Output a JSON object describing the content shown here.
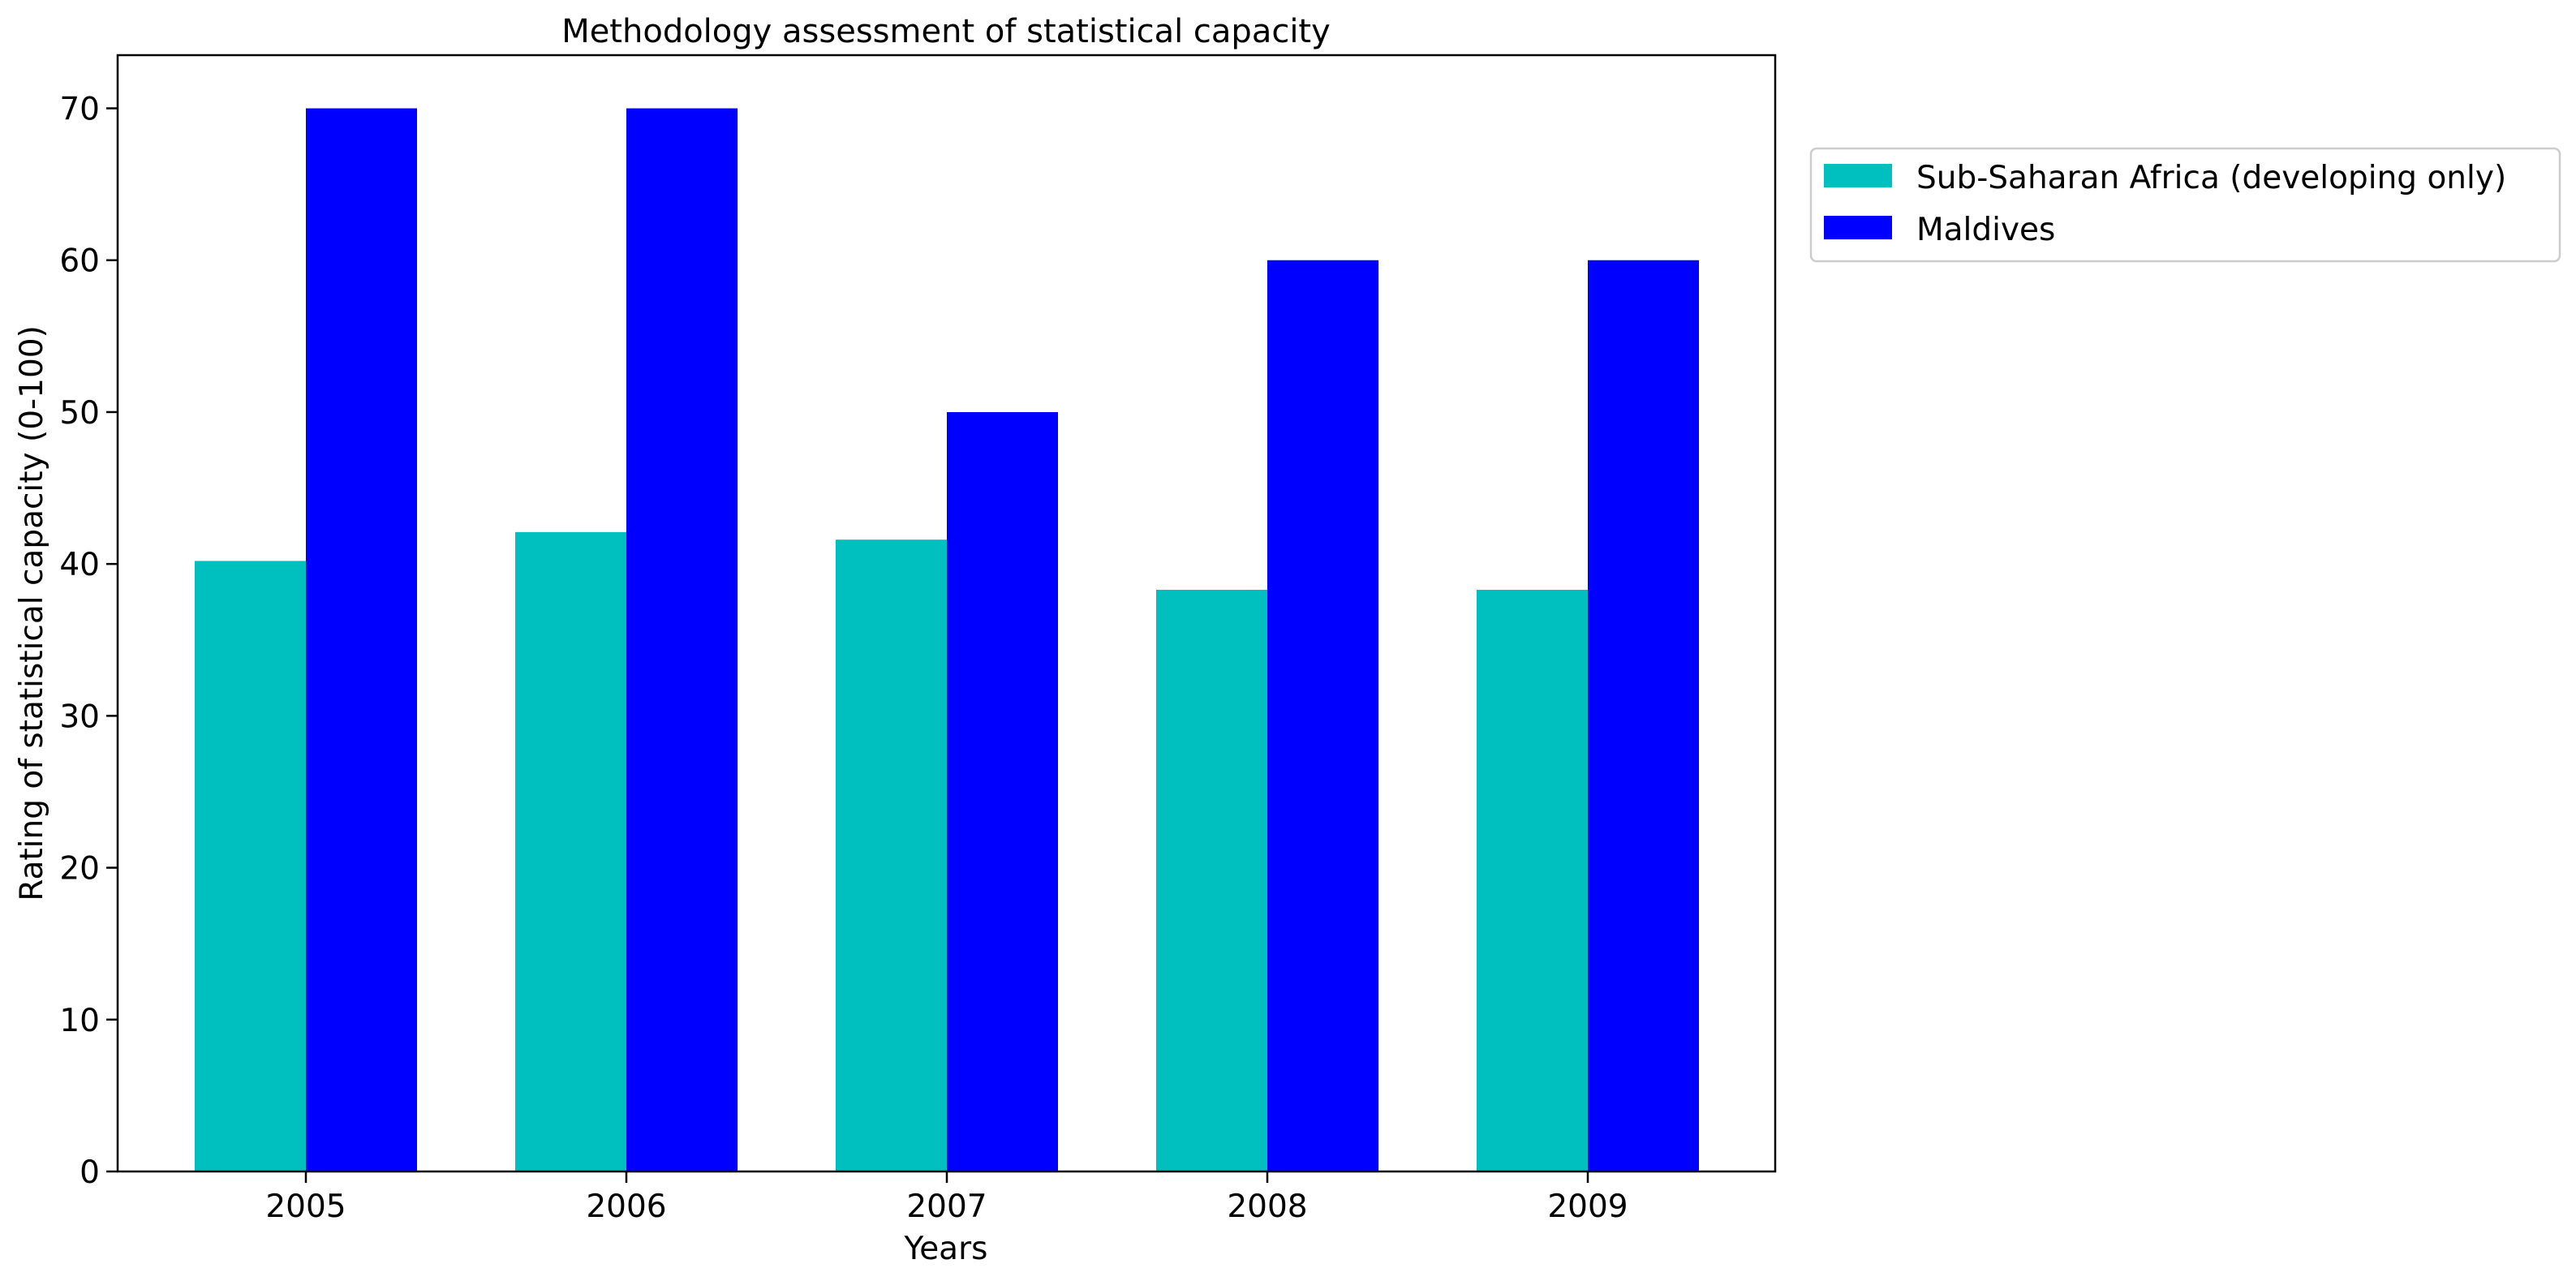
{
  "chart_data": {
    "type": "bar",
    "title": "Methodology assessment of statistical capacity",
    "xlabel": "Years",
    "ylabel": "Rating of statistical capacity (0-100)",
    "categories": [
      "2005",
      "2006",
      "2007",
      "2008",
      "2009"
    ],
    "ylim": [
      0,
      73.5
    ],
    "yticks": [
      0,
      10,
      20,
      30,
      40,
      50,
      60,
      70
    ],
    "grid": false,
    "legend_position": "outside-top-right",
    "series": [
      {
        "name": "Sub-Saharan Africa (developing only)",
        "color": "#00bfbf",
        "values": [
          40.2,
          42.1,
          41.6,
          38.3,
          38.3
        ]
      },
      {
        "name": "Maldives",
        "color": "#0000ff",
        "values": [
          70,
          70,
          50,
          60,
          60
        ]
      }
    ]
  }
}
